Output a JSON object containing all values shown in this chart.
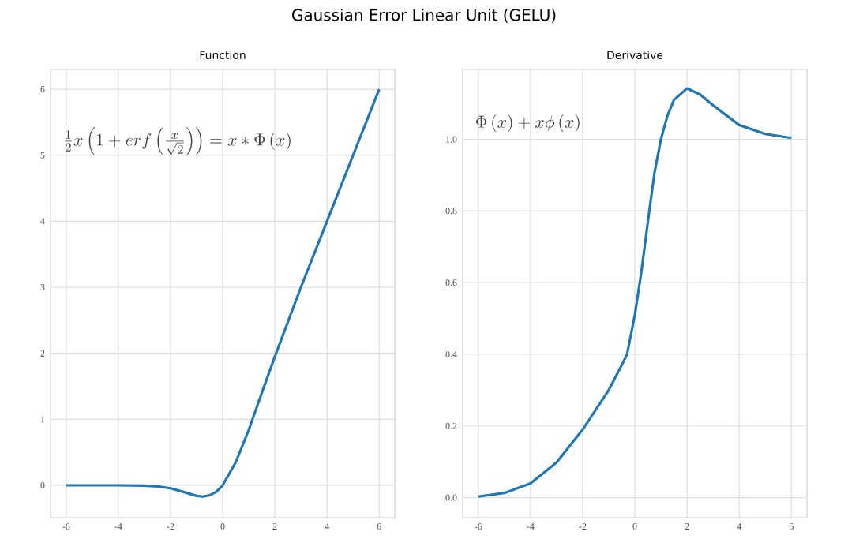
{
  "chart_data": [
    {
      "type": "line",
      "title": "Gaussian Error Linear Unit (GELU)",
      "subtitle": "Function",
      "annotations": [
        "\\frac{1}{2}x\\left(1+erf\\left(\\frac{x}{\\sqrt{2}}\\right)\\right)=x*\\Phi\\left(x\\right)"
      ],
      "x": [
        -6,
        -5,
        -4,
        -3,
        -2.5,
        -2,
        -1.5,
        -1,
        -0.75,
        -0.5,
        -0.25,
        0,
        0.5,
        1,
        1.5,
        2,
        3,
        4,
        5,
        6
      ],
      "series": [
        {
          "color": "#1f77b4",
          "values": [
            0,
            0,
            0,
            -0.004,
            -0.016,
            -0.045,
            -0.1,
            -0.16,
            -0.17,
            -0.15,
            -0.1,
            0,
            0.35,
            0.84,
            1.4,
            1.95,
            3.0,
            4.0,
            5.0,
            6.0
          ]
        }
      ],
      "xlim": [
        -6.6,
        6.6
      ],
      "ylim": [
        -0.49,
        6.3
      ],
      "xticks": [
        -6,
        -4,
        -2,
        0,
        2,
        4,
        6
      ],
      "yticks": [
        0,
        1,
        2,
        3,
        4,
        5,
        6
      ],
      "grid": true,
      "line_style": "solid"
    },
    {
      "type": "line",
      "subtitle": "Derivative",
      "annotations": [
        "\\Phi\\left(x\\right)+x\\phi\\left(x\\right)"
      ],
      "x": [
        -6,
        -5,
        -4,
        -3,
        -2,
        -1.5,
        -1,
        -0.5,
        -0.3,
        0,
        0.25,
        0.5,
        0.75,
        1,
        1.25,
        1.5,
        2,
        2.5,
        3,
        4,
        5,
        6
      ],
      "series": [
        {
          "color": "#1f77b4",
          "values": [
            0.003,
            0.013,
            0.04,
            0.098,
            0.19,
            0.245,
            0.3,
            0.37,
            0.4,
            0.51,
            0.63,
            0.77,
            0.905,
            1.0,
            1.066,
            1.11,
            1.142,
            1.125,
            1.095,
            1.04,
            1.015,
            1.004
          ]
        }
      ],
      "xlim": [
        -6.6,
        6.6
      ],
      "ylim": [
        -0.056,
        1.195
      ],
      "xticks": [
        -6,
        -4,
        -2,
        0,
        2,
        4,
        6
      ],
      "yticks": [
        {
          "value": 0,
          "label": "0.0"
        },
        {
          "value": 0.2,
          "label": "0.2"
        },
        {
          "value": 0.4,
          "label": "0.4"
        },
        {
          "value": 0.6,
          "label": "0.6"
        },
        {
          "value": 0.8,
          "label": "0.8"
        },
        {
          "value": 1.0,
          "label": "1.0"
        }
      ],
      "grid": true,
      "line_style": "solid"
    }
  ]
}
